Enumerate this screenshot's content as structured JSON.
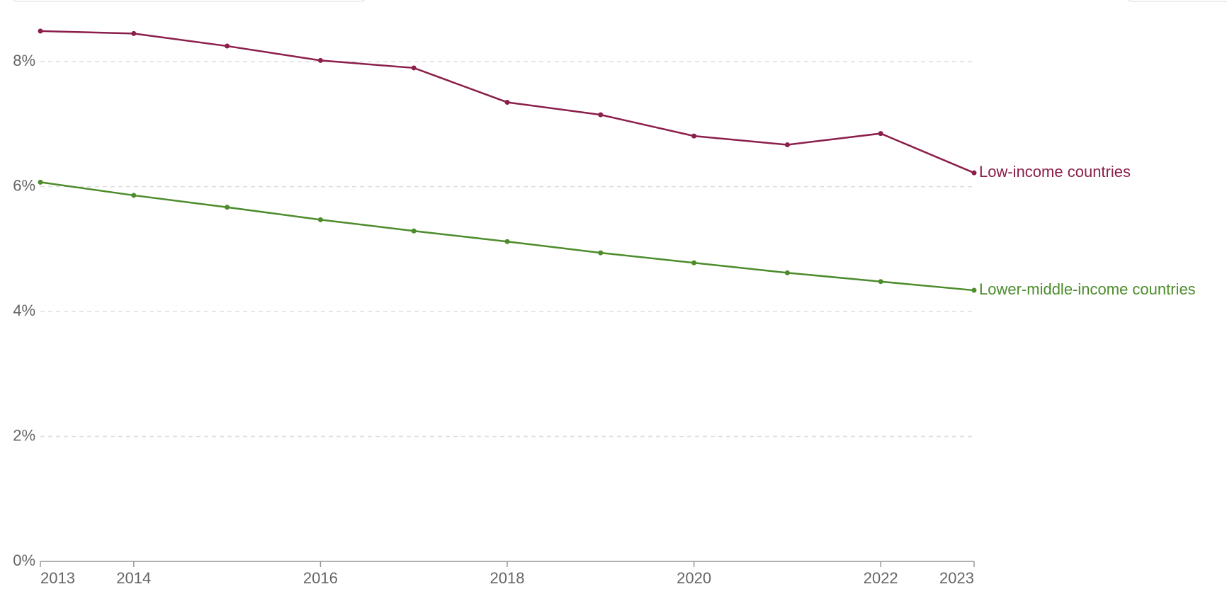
{
  "chart_data": {
    "type": "line",
    "x": [
      2013,
      2014,
      2015,
      2016,
      2017,
      2018,
      2019,
      2020,
      2021,
      2022,
      2023
    ],
    "series": [
      {
        "name": "Low-income countries",
        "color": "#8b1e4a",
        "values": [
          8.49,
          8.45,
          8.25,
          8.02,
          7.9,
          7.35,
          7.15,
          6.81,
          6.67,
          6.85,
          6.22
        ]
      },
      {
        "name": "Lower-middle-income countries",
        "color": "#4c8c2b",
        "values": [
          6.07,
          5.86,
          5.67,
          5.47,
          5.29,
          5.12,
          4.94,
          4.78,
          4.62,
          4.48,
          4.34
        ]
      }
    ],
    "xlim": [
      2013,
      2023
    ],
    "xticks": [
      2013,
      2014,
      2016,
      2018,
      2020,
      2022,
      2023
    ],
    "ylim": [
      0,
      8.5
    ],
    "yticks": [
      {
        "value": 0,
        "label": "0%"
      },
      {
        "value": 2,
        "label": "2%"
      },
      {
        "value": 4,
        "label": "4%"
      },
      {
        "value": 6,
        "label": "6%"
      },
      {
        "value": 8,
        "label": "8%"
      }
    ],
    "grid": true
  }
}
